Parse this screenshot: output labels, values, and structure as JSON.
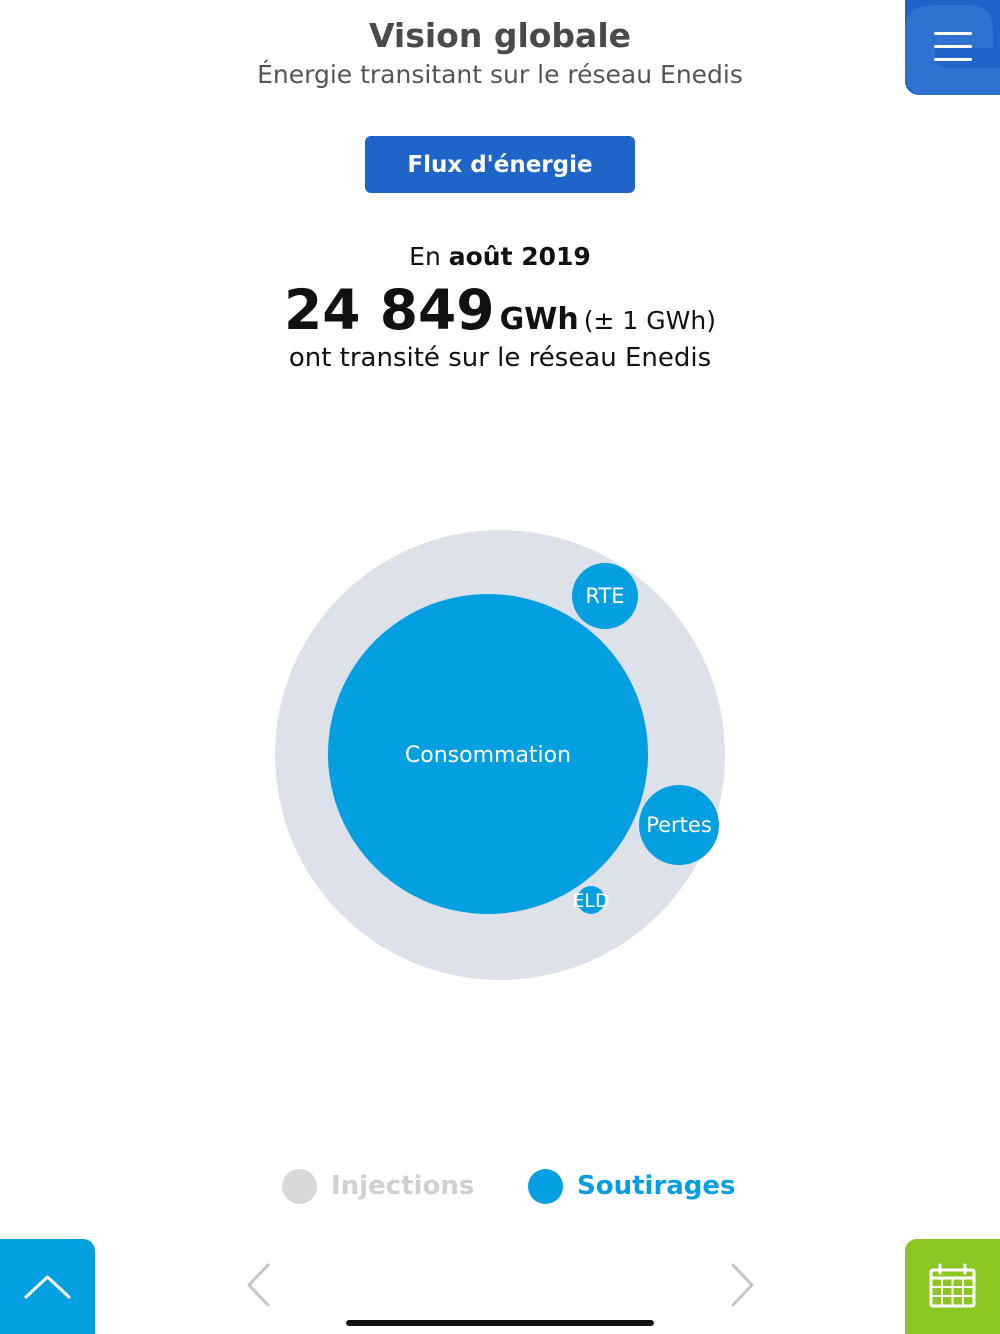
{
  "header": {
    "title": "Vision globale",
    "subtitle": "Énergie transitant sur le réseau Enedis",
    "menu_icon": "hamburger-menu-icon"
  },
  "flux_button": {
    "label": "Flux d'énergie"
  },
  "summary": {
    "period_prefix": "En",
    "period": "août 2019",
    "value": "24 849",
    "unit": "GWh",
    "margin": "(± 1 GWh)",
    "description": "ont transité sur le réseau Enedis"
  },
  "bubbles": {
    "colors": {
      "outer": "#dde1ea",
      "bubble": "#049fe0",
      "label": "#ffffff"
    },
    "items": [
      {
        "label": "Consommation"
      },
      {
        "label": "RTE"
      },
      {
        "label": "Pertes"
      },
      {
        "label": "ELD"
      }
    ]
  },
  "legend": {
    "injections": {
      "label": "Injections",
      "active": false,
      "color": "#d8d8d8"
    },
    "soutirages": {
      "label": "Soutirages",
      "active": true,
      "color": "#049fe0"
    }
  },
  "footer": {
    "up_icon": "chevron-up-icon",
    "prev_icon": "chevron-left-icon",
    "next_icon": "chevron-right-icon",
    "calendar_icon": "calendar-icon"
  },
  "colors": {
    "brand_blue": "#1f64c8",
    "accent_cyan": "#049fe0",
    "calendar_green": "#8cc620"
  }
}
